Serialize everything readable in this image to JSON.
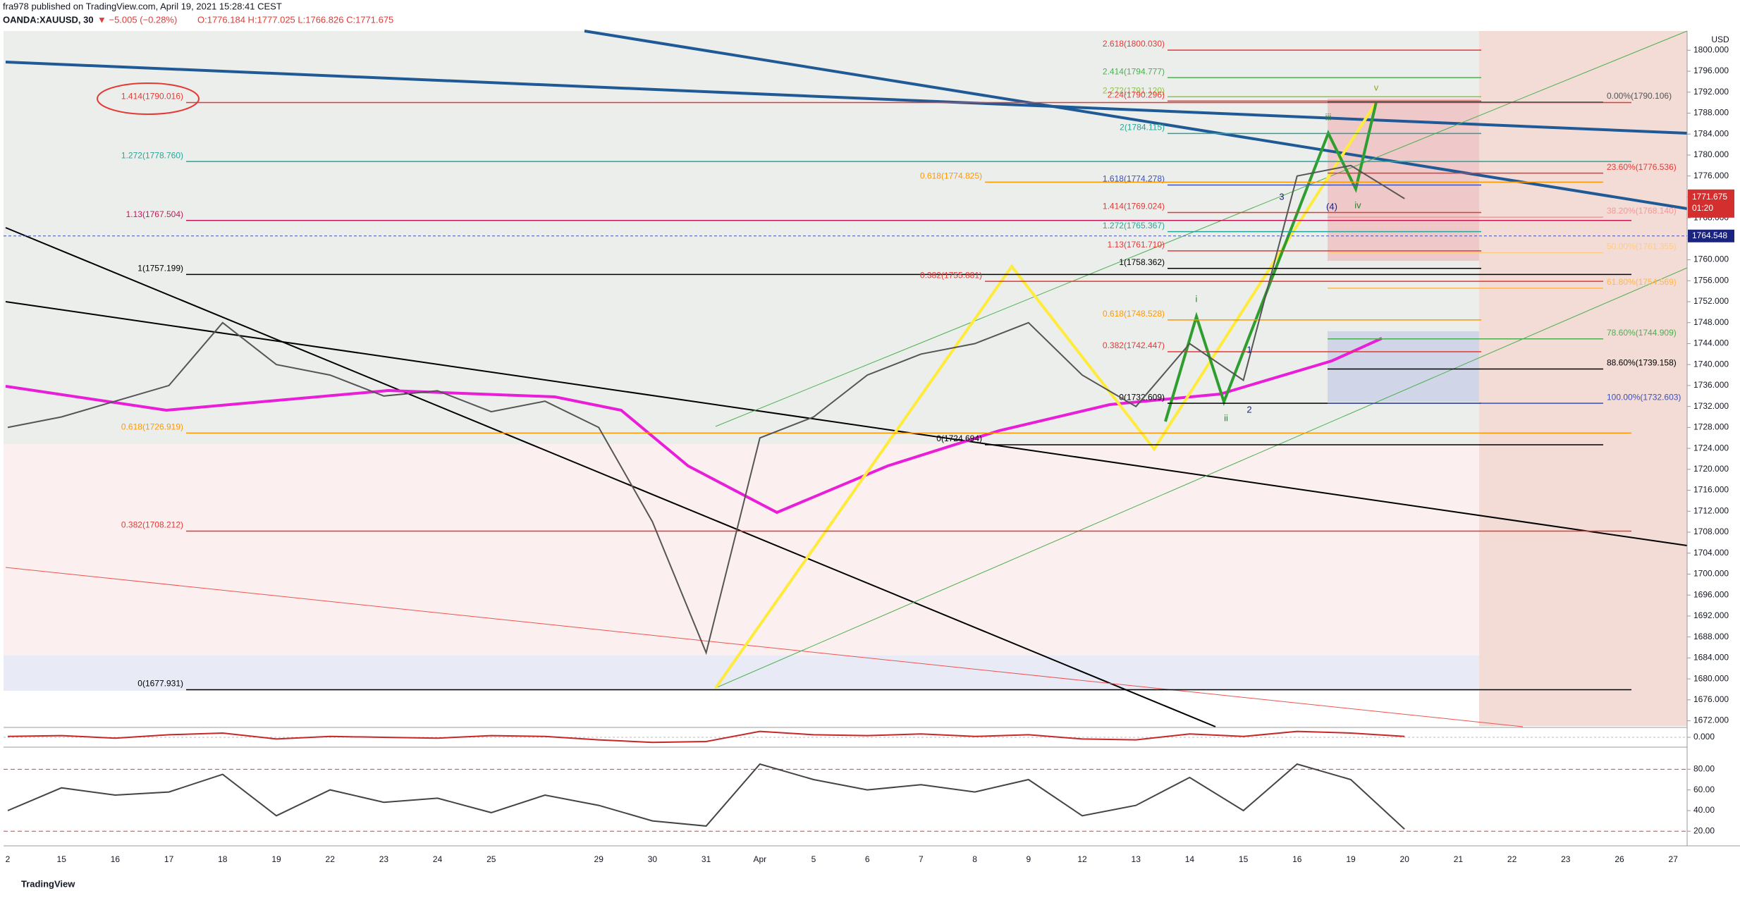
{
  "chart_data": [
    {
      "type": "line",
      "header": {
        "author_line": "fra978 published on TradingView.com, April 19, 2021 15:28:41 CEST",
        "symbol": "OANDA:XAUUSD, 30",
        "change": "▼ −5.005 (−0.28%)",
        "ohlc": "O:1776.184 H:1777.025 L:1766.826 C:1771.675"
      },
      "currency": "USD",
      "categories": [
        "2",
        "15",
        "16",
        "17",
        "18",
        "19",
        "22",
        "23",
        "24",
        "25",
        null,
        "29",
        "30",
        "31",
        "Apr",
        "5",
        "6",
        "7",
        "8",
        "9",
        "12",
        "13",
        "14",
        "15",
        "16",
        "19",
        "20",
        "21",
        "22",
        "23",
        "26",
        "27"
      ],
      "values": [
        1728,
        1730,
        1733,
        1736,
        1748,
        1740,
        1738,
        1734,
        1735,
        1731,
        1733,
        1728,
        1710,
        1685,
        1726,
        1730,
        1738,
        1742,
        1744,
        1748,
        1738,
        1732,
        1744,
        1737,
        1776,
        1778,
        1771.675,
        null,
        null,
        null,
        null,
        null
      ],
      "color": "#555555",
      "ylim": [
        1671,
        1803
      ],
      "yticks": [
        {
          "value": 1672,
          "label": "1672.000"
        },
        {
          "value": 1676,
          "label": "1676.000"
        },
        {
          "value": 1680,
          "label": "1680.000"
        },
        {
          "value": 1684,
          "label": "1684.000"
        },
        {
          "value": 1688,
          "label": "1688.000"
        },
        {
          "value": 1692,
          "label": "1692.000"
        },
        {
          "value": 1696,
          "label": "1696.000"
        },
        {
          "value": 1700,
          "label": "1700.000"
        },
        {
          "value": 1704,
          "label": "1704.000"
        },
        {
          "value": 1708,
          "label": "1708.000"
        },
        {
          "value": 1712,
          "label": "1712.000"
        },
        {
          "value": 1716,
          "label": "1716.000"
        },
        {
          "value": 1720,
          "label": "1720.000"
        },
        {
          "value": 1724,
          "label": "1724.000"
        },
        {
          "value": 1728,
          "label": "1728.000"
        },
        {
          "value": 1732,
          "label": "1732.000"
        },
        {
          "value": 1736,
          "label": "1736.000"
        },
        {
          "value": 1740,
          "label": "1740.000"
        },
        {
          "value": 1744,
          "label": "1744.000"
        },
        {
          "value": 1748,
          "label": "1748.000"
        },
        {
          "value": 1752,
          "label": "1752.000"
        },
        {
          "value": 1756,
          "label": "1756.000"
        },
        {
          "value": 1760,
          "label": "1760.000"
        },
        {
          "value": 1764,
          "label": "1764.000"
        },
        {
          "value": 1768,
          "label": "1768.000"
        },
        {
          "value": 1772,
          "label": "1772.000"
        },
        {
          "value": 1776,
          "label": "1776.000"
        },
        {
          "value": 1780,
          "label": "1780.000"
        },
        {
          "value": 1784,
          "label": "1784.000"
        },
        {
          "value": 1788,
          "label": "1788.000"
        },
        {
          "value": 1792,
          "label": "1792.000"
        },
        {
          "value": 1796,
          "label": "1796.000"
        },
        {
          "value": 1800,
          "label": "1800.000"
        }
      ],
      "last_price": 1771.675,
      "countdown": "01:20",
      "line_price": 1764.548,
      "fib_levels": [
        {
          "label": "2.618(1800.030)",
          "value": 1800.03,
          "color": "#e53935"
        },
        {
          "label": "2.414(1794.777)",
          "value": 1794.777,
          "color": "#4caf50"
        },
        {
          "label": "2.272(1791.120)",
          "value": 1791.12,
          "color": "#8bc34a"
        },
        {
          "label": "2.24(1790.296)",
          "value": 1790.296,
          "color": "#e53935"
        },
        {
          "label": "2(1784.115)",
          "value": 1784.115,
          "color": "#26a69a"
        },
        {
          "label": "1.618(1774.278)",
          "value": 1774.278,
          "color": "#3f51b5"
        },
        {
          "label": "1.414(1769.024)",
          "value": 1769.024,
          "color": "#e53935"
        },
        {
          "label": "1.272(1765.367)",
          "value": 1765.367,
          "color": "#26a69a"
        },
        {
          "label": "1.13(1761.710)",
          "value": 1761.71,
          "color": "#e53935"
        },
        {
          "label": "1(1758.362)",
          "value": 1758.362,
          "color": "#000000"
        },
        {
          "label": "0.618(1748.528)",
          "value": 1748.528,
          "color": "#ff9800"
        },
        {
          "label": "0.382(1742.447)",
          "value": 1742.447,
          "color": "#e53935"
        },
        {
          "label": "0(1732.609)",
          "value": 1732.609,
          "color": "#000000"
        },
        {
          "label": "1.414(1790.016)",
          "value": 1790.016,
          "color": "#e53935"
        },
        {
          "label": "1.272(1778.760)",
          "value": 1778.76,
          "color": "#26a69a"
        },
        {
          "label": "1.13(1767.504)",
          "value": 1767.504,
          "color": "#c2185b"
        },
        {
          "label": "1(1757.199)",
          "value": 1757.199,
          "color": "#000000"
        },
        {
          "label": "0.618(1726.919)",
          "value": 1726.919,
          "color": "#ff9800"
        },
        {
          "label": "0.382(1708.212)",
          "value": 1708.212,
          "color": "#e53935"
        },
        {
          "label": "0(1677.931)",
          "value": 1677.931,
          "color": "#000000"
        },
        {
          "label": "0.618(1774.825)",
          "value": 1774.825,
          "color": "#ff9800"
        },
        {
          "label": "0.382(1755.881)",
          "value": 1755.881,
          "color": "#e53935"
        },
        {
          "label": "0(1724.694)",
          "value": 1724.694,
          "color": "#000000"
        },
        {
          "label": "0.00%(1790.106)",
          "value": 1790.106,
          "color": "#555555"
        },
        {
          "label": "23.60%(1776.536)",
          "value": 1776.536,
          "color": "#e53935"
        },
        {
          "label": "38.20%(1768.140)",
          "value": 1768.14,
          "color": "#ef9a9a"
        },
        {
          "label": "50.00%(1761.355)",
          "value": 1761.355,
          "color": "#ffcc80"
        },
        {
          "label": "61.80%(1754.569)",
          "value": 1754.569,
          "color": "#ffb74d"
        },
        {
          "label": "78.60%(1744.909)",
          "value": 1744.909,
          "color": "#4caf50"
        },
        {
          "label": "88.60%(1739.158)",
          "value": 1739.158,
          "color": "#000000"
        },
        {
          "label": "100.00%(1732.603)",
          "value": 1732.603,
          "color": "#3f51b5"
        }
      ],
      "wave_labels": [
        "v",
        "iii",
        "iv",
        "i",
        "ii",
        "3",
        "1",
        "2",
        "(4)"
      ]
    },
    {
      "type": "line",
      "values": [
        0.1,
        0.2,
        -0.1,
        0.3,
        0.5,
        -0.2,
        0.1,
        0,
        -0.1,
        0.2,
        0.1,
        -0.3,
        -0.6,
        -0.5,
        0.7,
        0.3,
        0.2,
        0.4,
        0.1,
        0.3,
        -0.2,
        -0.3,
        0.4,
        0.1,
        0.7,
        0.5,
        0.1,
        null,
        null,
        null,
        null,
        null
      ],
      "color": "#c62828",
      "ylim": [
        -1,
        1
      ],
      "yticks": [
        {
          "value": 0,
          "label": "0.000"
        }
      ]
    },
    {
      "type": "line",
      "values": [
        40,
        62,
        55,
        58,
        75,
        35,
        60,
        48,
        52,
        38,
        55,
        45,
        30,
        25,
        85,
        70,
        60,
        65,
        58,
        70,
        35,
        45,
        72,
        40,
        85,
        70,
        22,
        null,
        null,
        null,
        null,
        null
      ],
      "color": "#444444",
      "ylim": [
        12,
        100
      ],
      "yticks": [
        {
          "value": 20,
          "label": "20.00"
        },
        {
          "value": 40,
          "label": "40.00"
        },
        {
          "value": 60,
          "label": "60.00"
        },
        {
          "value": 80,
          "label": "80.00"
        }
      ]
    }
  ]
}
